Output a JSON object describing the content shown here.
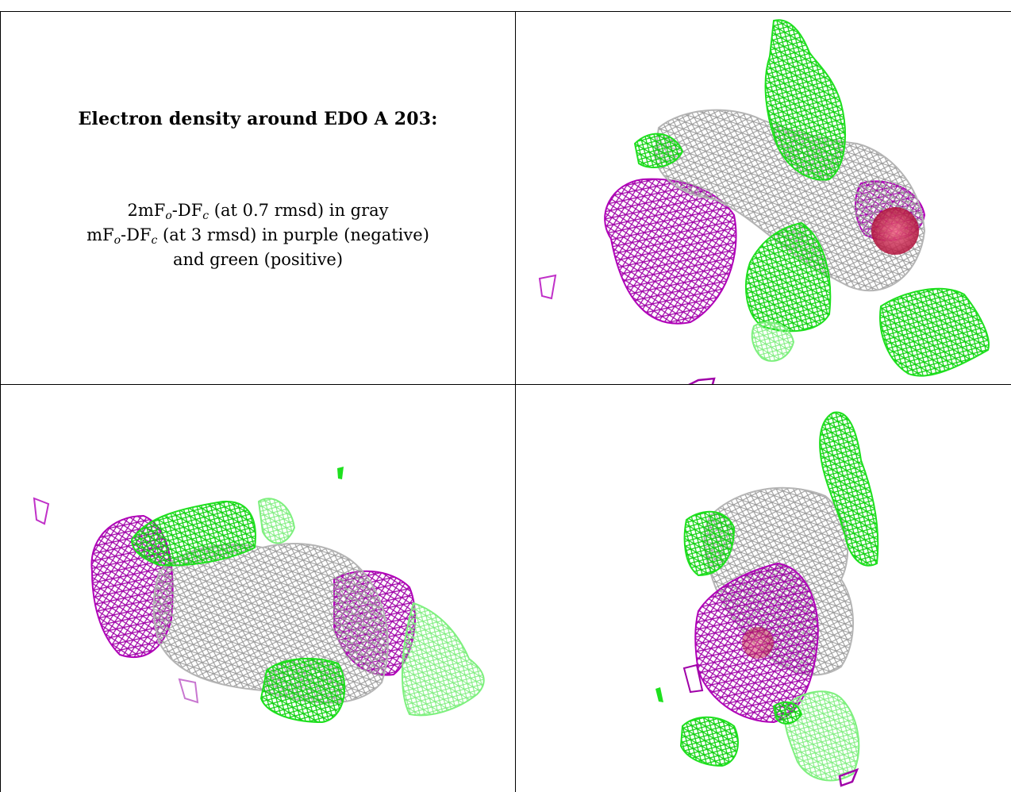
{
  "caption": {
    "title": "Electron density around EDO A 203:",
    "line1": {
      "a": "2mF",
      "o": "o",
      "b": "-DF",
      "c": "c",
      "rest": " (at 0.7 rmsd) in gray"
    },
    "line2": {
      "a": "mF",
      "o": "o",
      "b": "-DF",
      "c": "c",
      "rest": " (at 3 rmsd) in purple (negative)"
    },
    "line3": "and green (positive)"
  },
  "colors": {
    "gray_map": "#b4b4b4",
    "negative_map": "#b000b8",
    "positive_map": "#1ee01e",
    "light_positive_map": "#7ef07e",
    "atom_red": "#e0305a"
  }
}
